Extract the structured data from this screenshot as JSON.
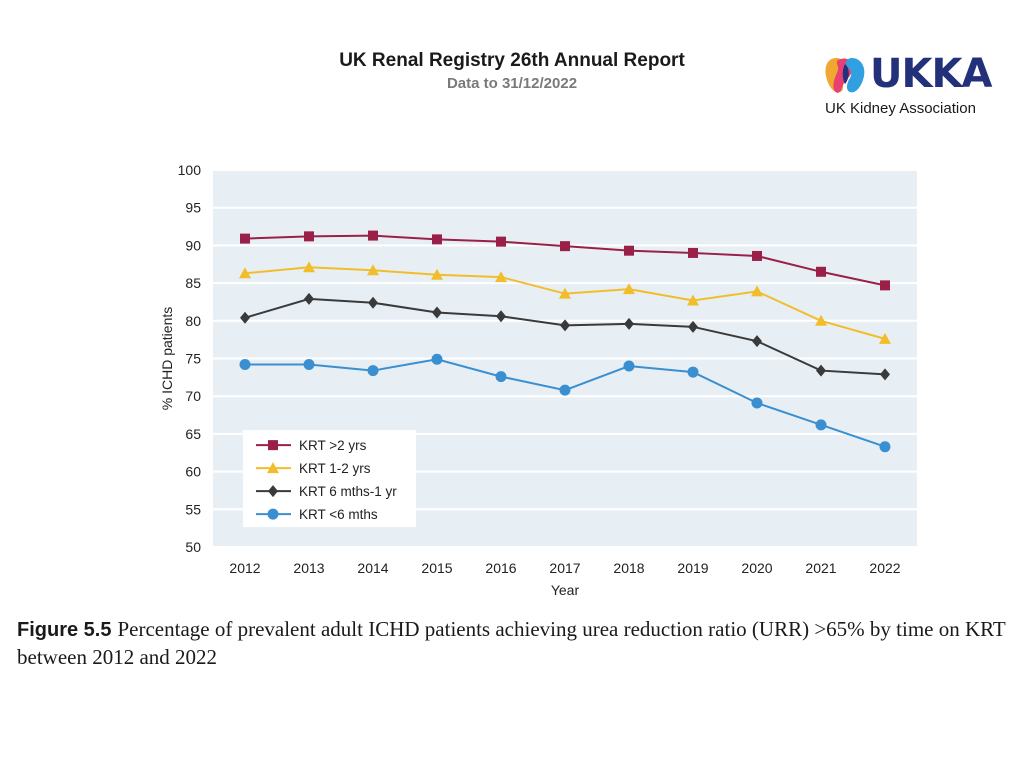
{
  "header": {
    "title": "UK Renal Registry 26th Annual Report",
    "subtitle": "Data to 31/12/2022"
  },
  "logo": {
    "text": "UKKA",
    "subtitle": "UK Kidney Association",
    "colors": [
      "#f0a830",
      "#e84070",
      "#30a0e0",
      "#23307a"
    ]
  },
  "caption": {
    "figure_label": "Figure 5.5",
    "text": "Percentage of prevalent adult ICHD patients achieving urea reduction ratio (URR) >65% by time on KRT between 2012 and 2022"
  },
  "chart_data": {
    "type": "line",
    "title": "",
    "xlabel": "Year",
    "ylabel": "% ICHD patients",
    "categories": [
      "2012",
      "2013",
      "2014",
      "2015",
      "2016",
      "2017",
      "2018",
      "2019",
      "2020",
      "2021",
      "2022"
    ],
    "yticks": [
      50,
      55,
      60,
      65,
      70,
      75,
      80,
      85,
      90,
      95,
      100
    ],
    "ylim": [
      50,
      100
    ],
    "grid": true,
    "legend_position": "bottom-left",
    "series": [
      {
        "name": "KRT >2 yrs",
        "color": "#9a2048",
        "marker": "square",
        "values": [
          90.9,
          91.2,
          91.3,
          90.8,
          90.5,
          89.9,
          89.3,
          89.0,
          88.6,
          86.5,
          84.7
        ]
      },
      {
        "name": "KRT 1-2 yrs",
        "color": "#f2bd2a",
        "marker": "triangle",
        "values": [
          86.3,
          87.1,
          86.7,
          86.1,
          85.8,
          83.6,
          84.2,
          82.7,
          83.9,
          80.0,
          77.6
        ]
      },
      {
        "name": "KRT 6 mths-1 yr",
        "color": "#3a3a3a",
        "marker": "diamond",
        "values": [
          80.4,
          82.9,
          82.4,
          81.1,
          80.6,
          79.4,
          79.6,
          79.2,
          77.3,
          73.4,
          72.9
        ]
      },
      {
        "name": "KRT <6 mths",
        "color": "#3a8fd0",
        "marker": "circle",
        "values": [
          74.2,
          74.2,
          73.4,
          74.9,
          72.6,
          70.8,
          74.0,
          73.2,
          69.1,
          66.2,
          63.3
        ]
      }
    ]
  }
}
